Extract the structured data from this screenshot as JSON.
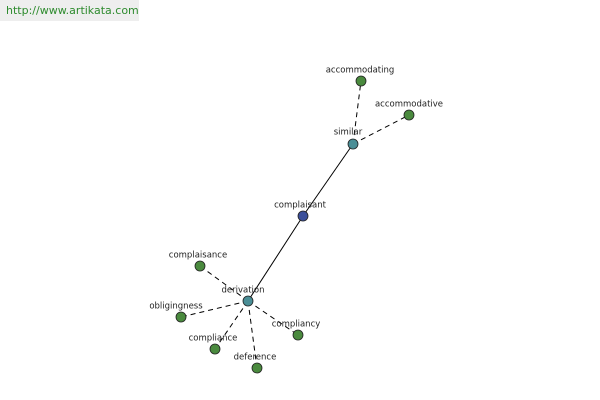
{
  "header": {
    "url": "http://www.artikata.com"
  },
  "nodes": [
    {
      "label": "complaisant"
    },
    {
      "label": "similar"
    },
    {
      "label": "derivation"
    },
    {
      "label": "accommodating"
    },
    {
      "label": "accommodative"
    },
    {
      "label": "complaisance"
    },
    {
      "label": "obligingness"
    },
    {
      "label": "compliance"
    },
    {
      "label": "deference"
    },
    {
      "label": "compliancy"
    }
  ]
}
